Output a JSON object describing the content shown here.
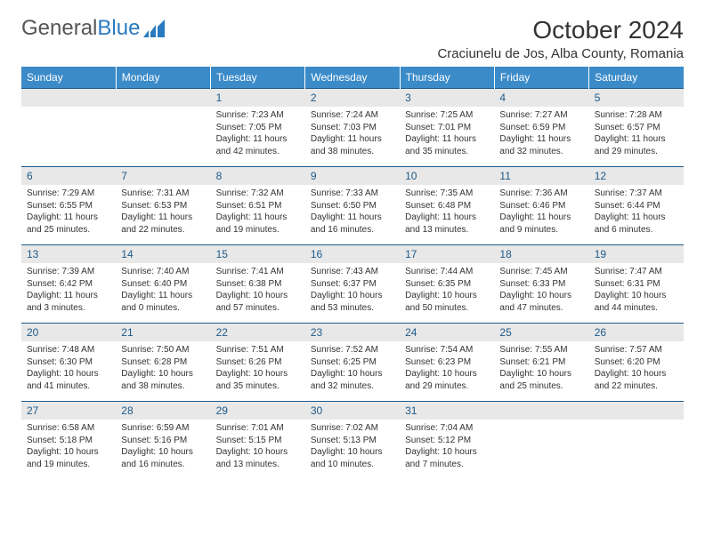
{
  "logo": {
    "text1": "General",
    "text2": "Blue"
  },
  "title": "October 2024",
  "location": "Craciunelu de Jos, Alba County, Romania",
  "colors": {
    "header_bg": "#3b8bc9",
    "header_text": "#ffffff",
    "daynum_bg": "#e8e8e8",
    "daynum_text": "#1d5a8a",
    "rule": "#1d5a8a",
    "body_text": "#333333",
    "logo_gray": "#555555",
    "logo_blue": "#2a7ac0"
  },
  "weekdays": [
    "Sunday",
    "Monday",
    "Tuesday",
    "Wednesday",
    "Thursday",
    "Friday",
    "Saturday"
  ],
  "weeks": [
    [
      {
        "n": "",
        "sr": "",
        "ss": "",
        "dl": ""
      },
      {
        "n": "",
        "sr": "",
        "ss": "",
        "dl": ""
      },
      {
        "n": "1",
        "sr": "Sunrise: 7:23 AM",
        "ss": "Sunset: 7:05 PM",
        "dl": "Daylight: 11 hours and 42 minutes."
      },
      {
        "n": "2",
        "sr": "Sunrise: 7:24 AM",
        "ss": "Sunset: 7:03 PM",
        "dl": "Daylight: 11 hours and 38 minutes."
      },
      {
        "n": "3",
        "sr": "Sunrise: 7:25 AM",
        "ss": "Sunset: 7:01 PM",
        "dl": "Daylight: 11 hours and 35 minutes."
      },
      {
        "n": "4",
        "sr": "Sunrise: 7:27 AM",
        "ss": "Sunset: 6:59 PM",
        "dl": "Daylight: 11 hours and 32 minutes."
      },
      {
        "n": "5",
        "sr": "Sunrise: 7:28 AM",
        "ss": "Sunset: 6:57 PM",
        "dl": "Daylight: 11 hours and 29 minutes."
      }
    ],
    [
      {
        "n": "6",
        "sr": "Sunrise: 7:29 AM",
        "ss": "Sunset: 6:55 PM",
        "dl": "Daylight: 11 hours and 25 minutes."
      },
      {
        "n": "7",
        "sr": "Sunrise: 7:31 AM",
        "ss": "Sunset: 6:53 PM",
        "dl": "Daylight: 11 hours and 22 minutes."
      },
      {
        "n": "8",
        "sr": "Sunrise: 7:32 AM",
        "ss": "Sunset: 6:51 PM",
        "dl": "Daylight: 11 hours and 19 minutes."
      },
      {
        "n": "9",
        "sr": "Sunrise: 7:33 AM",
        "ss": "Sunset: 6:50 PM",
        "dl": "Daylight: 11 hours and 16 minutes."
      },
      {
        "n": "10",
        "sr": "Sunrise: 7:35 AM",
        "ss": "Sunset: 6:48 PM",
        "dl": "Daylight: 11 hours and 13 minutes."
      },
      {
        "n": "11",
        "sr": "Sunrise: 7:36 AM",
        "ss": "Sunset: 6:46 PM",
        "dl": "Daylight: 11 hours and 9 minutes."
      },
      {
        "n": "12",
        "sr": "Sunrise: 7:37 AM",
        "ss": "Sunset: 6:44 PM",
        "dl": "Daylight: 11 hours and 6 minutes."
      }
    ],
    [
      {
        "n": "13",
        "sr": "Sunrise: 7:39 AM",
        "ss": "Sunset: 6:42 PM",
        "dl": "Daylight: 11 hours and 3 minutes."
      },
      {
        "n": "14",
        "sr": "Sunrise: 7:40 AM",
        "ss": "Sunset: 6:40 PM",
        "dl": "Daylight: 11 hours and 0 minutes."
      },
      {
        "n": "15",
        "sr": "Sunrise: 7:41 AM",
        "ss": "Sunset: 6:38 PM",
        "dl": "Daylight: 10 hours and 57 minutes."
      },
      {
        "n": "16",
        "sr": "Sunrise: 7:43 AM",
        "ss": "Sunset: 6:37 PM",
        "dl": "Daylight: 10 hours and 53 minutes."
      },
      {
        "n": "17",
        "sr": "Sunrise: 7:44 AM",
        "ss": "Sunset: 6:35 PM",
        "dl": "Daylight: 10 hours and 50 minutes."
      },
      {
        "n": "18",
        "sr": "Sunrise: 7:45 AM",
        "ss": "Sunset: 6:33 PM",
        "dl": "Daylight: 10 hours and 47 minutes."
      },
      {
        "n": "19",
        "sr": "Sunrise: 7:47 AM",
        "ss": "Sunset: 6:31 PM",
        "dl": "Daylight: 10 hours and 44 minutes."
      }
    ],
    [
      {
        "n": "20",
        "sr": "Sunrise: 7:48 AM",
        "ss": "Sunset: 6:30 PM",
        "dl": "Daylight: 10 hours and 41 minutes."
      },
      {
        "n": "21",
        "sr": "Sunrise: 7:50 AM",
        "ss": "Sunset: 6:28 PM",
        "dl": "Daylight: 10 hours and 38 minutes."
      },
      {
        "n": "22",
        "sr": "Sunrise: 7:51 AM",
        "ss": "Sunset: 6:26 PM",
        "dl": "Daylight: 10 hours and 35 minutes."
      },
      {
        "n": "23",
        "sr": "Sunrise: 7:52 AM",
        "ss": "Sunset: 6:25 PM",
        "dl": "Daylight: 10 hours and 32 minutes."
      },
      {
        "n": "24",
        "sr": "Sunrise: 7:54 AM",
        "ss": "Sunset: 6:23 PM",
        "dl": "Daylight: 10 hours and 29 minutes."
      },
      {
        "n": "25",
        "sr": "Sunrise: 7:55 AM",
        "ss": "Sunset: 6:21 PM",
        "dl": "Daylight: 10 hours and 25 minutes."
      },
      {
        "n": "26",
        "sr": "Sunrise: 7:57 AM",
        "ss": "Sunset: 6:20 PM",
        "dl": "Daylight: 10 hours and 22 minutes."
      }
    ],
    [
      {
        "n": "27",
        "sr": "Sunrise: 6:58 AM",
        "ss": "Sunset: 5:18 PM",
        "dl": "Daylight: 10 hours and 19 minutes."
      },
      {
        "n": "28",
        "sr": "Sunrise: 6:59 AM",
        "ss": "Sunset: 5:16 PM",
        "dl": "Daylight: 10 hours and 16 minutes."
      },
      {
        "n": "29",
        "sr": "Sunrise: 7:01 AM",
        "ss": "Sunset: 5:15 PM",
        "dl": "Daylight: 10 hours and 13 minutes."
      },
      {
        "n": "30",
        "sr": "Sunrise: 7:02 AM",
        "ss": "Sunset: 5:13 PM",
        "dl": "Daylight: 10 hours and 10 minutes."
      },
      {
        "n": "31",
        "sr": "Sunrise: 7:04 AM",
        "ss": "Sunset: 5:12 PM",
        "dl": "Daylight: 10 hours and 7 minutes."
      },
      {
        "n": "",
        "sr": "",
        "ss": "",
        "dl": ""
      },
      {
        "n": "",
        "sr": "",
        "ss": "",
        "dl": ""
      }
    ]
  ]
}
